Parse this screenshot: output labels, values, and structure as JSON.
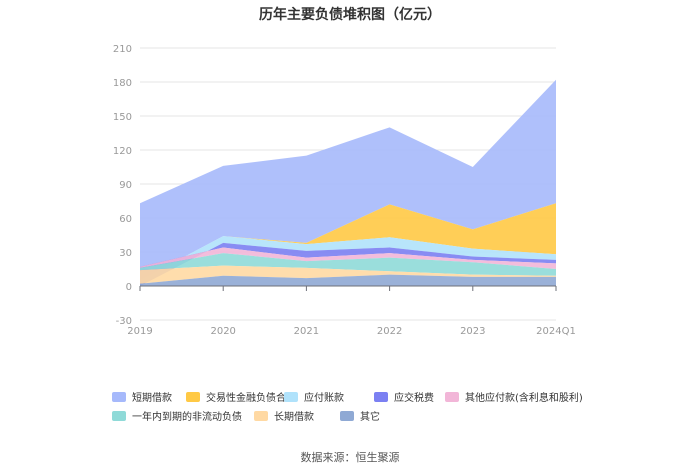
{
  "chart_data": {
    "type": "area",
    "stacked": true,
    "title": "历年主要负债堆积图（亿元）",
    "categories": [
      "2019",
      "2020",
      "2021",
      "2022",
      "2023",
      "2024Q1"
    ],
    "ylim": [
      -30,
      210
    ],
    "yticks": [
      -30,
      0,
      30,
      60,
      90,
      120,
      150,
      180,
      210
    ],
    "grid": true,
    "legend_position": "bottom",
    "series": [
      {
        "name": "其它",
        "color": "#8fa9d4",
        "values": [
          2,
          9,
          7,
          10,
          8,
          8
        ]
      },
      {
        "name": "长期借款",
        "color": "#ffd9a3",
        "values": [
          12,
          9,
          9,
          3,
          2,
          1
        ]
      },
      {
        "name": "一年内到期的非流动负债",
        "color": "#8fdad8",
        "values": [
          2,
          11,
          6,
          12,
          11,
          6
        ]
      },
      {
        "name": "其他应付款(含利息和股利)",
        "color": "#f2b6d8",
        "values": [
          1,
          5,
          3,
          4,
          2,
          5
        ]
      },
      {
        "name": "应交税费",
        "color": "#7b80f2",
        "values": [
          -17,
          4,
          6,
          5,
          3,
          3
        ]
      },
      {
        "name": "应付账款",
        "color": "#b0e2fb",
        "values": [
          5,
          6,
          6,
          9,
          7,
          5
        ]
      },
      {
        "name": "交易性金融负债合计",
        "color": "#ffc945",
        "values": [
          0,
          0,
          1,
          29,
          17,
          45
        ]
      },
      {
        "name": "短期借款",
        "color": "#a6b9fb",
        "values": [
          68,
          62,
          77,
          68,
          55,
          109
        ]
      }
    ],
    "legend_order": [
      "短期借款",
      "交易性金融负债合计",
      "应付账款",
      "应交税费",
      "其他应付款(含利息和股利)",
      "一年内到期的非流动负债",
      "长期借款",
      "其它"
    ],
    "source": "数据来源：恒生聚源"
  }
}
